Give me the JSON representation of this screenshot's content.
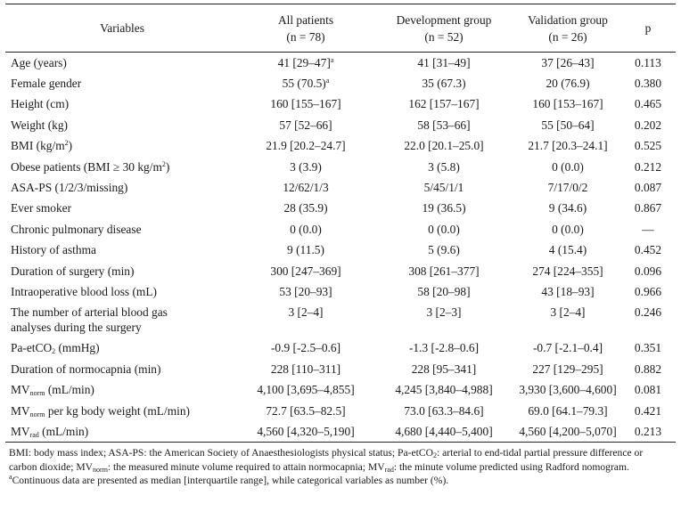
{
  "headers": {
    "variables": "Variables",
    "all": "All patients",
    "all_n": "(n = 78)",
    "dev": "Development group",
    "dev_n": "(n = 52)",
    "val": "Validation group",
    "val_n": "(n = 26)",
    "p": "p"
  },
  "rows": [
    {
      "label": "Age (years)",
      "all": "41 [29–47]",
      "all_sup": "a",
      "dev": "41 [31–49]",
      "val": "37 [26–43]",
      "p": "0.113"
    },
    {
      "label": "Female gender",
      "all": "55 (70.5)",
      "all_sup": "a",
      "dev": "35 (67.3)",
      "val": "20 (76.9)",
      "p": "0.380"
    },
    {
      "label": "Height (cm)",
      "all": "160 [155–167]",
      "dev": "162 [157–167]",
      "val": "160 [153–167]",
      "p": "0.465"
    },
    {
      "label": "Weight (kg)",
      "all": "57 [52–66]",
      "dev": "58 [53–66]",
      "val": "55 [50–64]",
      "p": "0.202"
    },
    {
      "label": "BMI (kg/m",
      "label_sup": "2",
      "label_post": ")",
      "all": "21.9 [20.2–24.7]",
      "dev": "22.0 [20.1–25.0]",
      "val": "21.7 [20.3–24.1]",
      "p": "0.525"
    },
    {
      "label": "Obese patients (BMI ≥ 30 kg/m",
      "label_sup": "2",
      "label_post": ")",
      "all": "3 (3.9)",
      "dev": "3 (5.8)",
      "val": "0 (0.0)",
      "p": "0.212"
    },
    {
      "label": "ASA-PS (1/2/3/missing)",
      "all": "12/62/1/3",
      "dev": "5/45/1/1",
      "val": "7/17/0/2",
      "p": "0.087"
    },
    {
      "label": "Ever smoker",
      "all": "28 (35.9)",
      "dev": "19 (36.5)",
      "val": "9 (34.6)",
      "p": "0.867"
    },
    {
      "label": "Chronic pulmonary disease",
      "all": "0 (0.0)",
      "dev": "0 (0.0)",
      "val": "0 (0.0)",
      "p": "—"
    },
    {
      "label": "History of asthma",
      "all": "9 (11.5)",
      "dev": "5 (9.6)",
      "val": "4 (15.4)",
      "p": "0.452"
    },
    {
      "label": "Duration of surgery (min)",
      "all": "300 [247–369]",
      "dev": "308 [261–377]",
      "val": "274 [224–355]",
      "p": "0.096"
    },
    {
      "label": "Intraoperative blood loss (mL)",
      "all": "53 [20–93]",
      "dev": "58 [20–98]",
      "val": "43 [18–93]",
      "p": "0.966"
    },
    {
      "label": "The number of arterial blood gas",
      "label2": "analyses during the surgery",
      "all": "3 [2–4]",
      "dev": "3 [2–3]",
      "val": "3 [2–4]",
      "p": "0.246"
    },
    {
      "label": "Pa-etCO",
      "label_sub": "2",
      "label_post": " (mmHg)",
      "all": "-0.9 [-2.5–0.6]",
      "dev": "-1.3 [-2.8–0.6]",
      "val": "-0.7 [-2.1–0.4]",
      "p": "0.351"
    },
    {
      "label": "Duration of normocapnia (min)",
      "all": "228 [110–311]",
      "dev": "228 [95–341]",
      "val": "227 [129–295]",
      "p": "0.882"
    },
    {
      "label": "MV",
      "label_sub": "norm",
      "label_post": " (mL/min)",
      "all": "4,100 [3,695–4,855]",
      "dev": "4,245 [3,840–4,988]",
      "val": "3,930 [3,600–4,600]",
      "p": "0.081"
    },
    {
      "label": "MV",
      "label_sub": "norm",
      "label_post": " per kg body weight (mL/min)",
      "all": "72.7 [63.5–82.5]",
      "dev": "73.0 [63.3–84.6]",
      "val": "69.0 [64.1–79.3]",
      "p": "0.421"
    },
    {
      "label": "MV",
      "label_sub": "rad",
      "label_post": " (mL/min)",
      "all": "4,560 [4,320–5,190]",
      "dev": "4,680 [4,440–5,400]",
      "val": "4,560 [4,200–5,070]",
      "p": "0.213"
    }
  ],
  "footnote": {
    "t1": "BMI: body mass index; ASA-PS: the American Society of Anaesthesiologists physical status; Pa-etCO",
    "t1_sub": "2",
    "t2": ": arterial to end-tidal partial pressure difference or carbon dioxide; MV",
    "t2_sub": "norm",
    "t3": ": the measured minute volume required to attain normocapnia; MV",
    "t3_sub": "rad",
    "t4": ": the minute volume predicted using Radford nomogram.",
    "note_sup": "a",
    "note": "Continuous data are presented as median [interquartile range], while categorical variables as number (%)."
  }
}
